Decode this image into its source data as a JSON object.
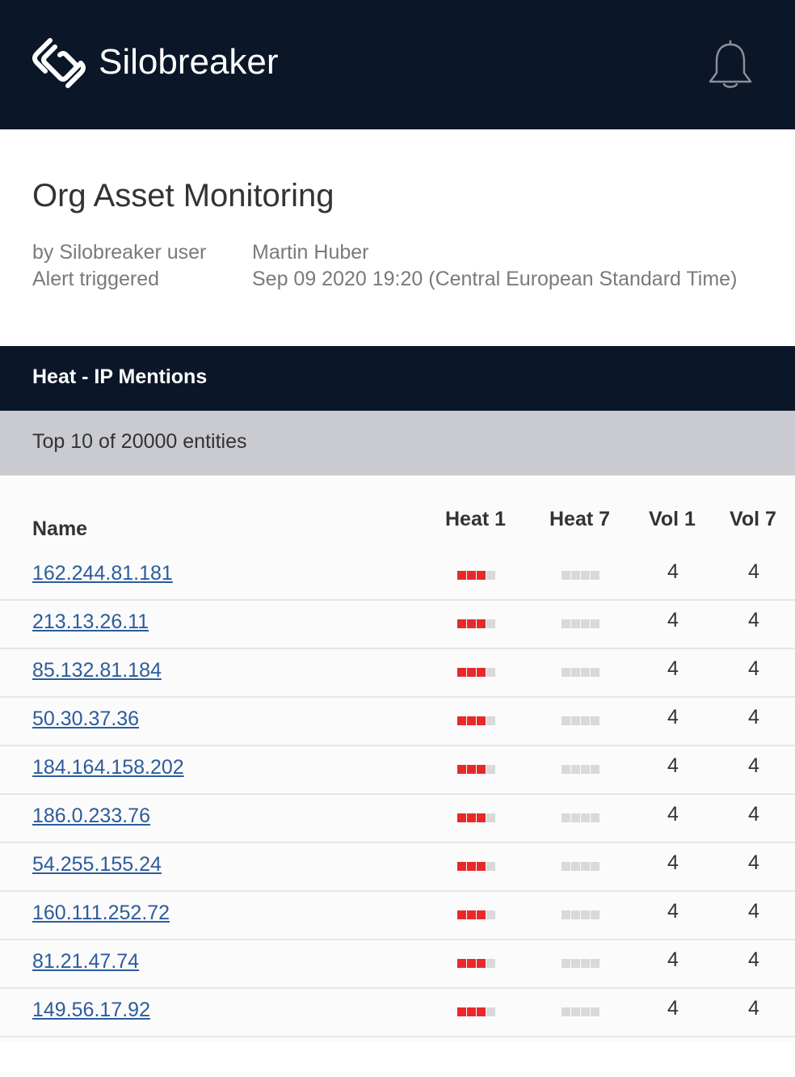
{
  "header": {
    "brand": "Silobreaker",
    "logo_icon": "silobreaker-logo-icon",
    "notification_icon": "bell-icon",
    "background": "#0b1628"
  },
  "alert": {
    "title": "Org Asset Monitoring",
    "by_label": "by Silobreaker user",
    "by_value": "Martin Huber",
    "triggered_label": "Alert triggered",
    "triggered_value": "Sep 09 2020 19:20 (Central European Standard Time)"
  },
  "section": {
    "title": "Heat - IP Mentions",
    "subtitle": "Top 10 of 20000 entities"
  },
  "table": {
    "columns": {
      "name": "Name",
      "heat1": "Heat 1",
      "heat7": "Heat 7",
      "vol1": "Vol 1",
      "vol7": "Vol 7"
    },
    "heat_colors": {
      "hot": "#e8292b",
      "empty": "#d9d9d9"
    },
    "rows": [
      {
        "name": "162.244.81.181",
        "heat1": 3,
        "heat7": 0,
        "vol1": "4",
        "vol7": "4"
      },
      {
        "name": "213.13.26.11",
        "heat1": 3,
        "heat7": 0,
        "vol1": "4",
        "vol7": "4"
      },
      {
        "name": "85.132.81.184",
        "heat1": 3,
        "heat7": 0,
        "vol1": "4",
        "vol7": "4"
      },
      {
        "name": "50.30.37.36",
        "heat1": 3,
        "heat7": 0,
        "vol1": "4",
        "vol7": "4"
      },
      {
        "name": "184.164.158.202",
        "heat1": 3,
        "heat7": 0,
        "vol1": "4",
        "vol7": "4"
      },
      {
        "name": "186.0.233.76",
        "heat1": 3,
        "heat7": 0,
        "vol1": "4",
        "vol7": "4"
      },
      {
        "name": "54.255.155.24",
        "heat1": 3,
        "heat7": 0,
        "vol1": "4",
        "vol7": "4"
      },
      {
        "name": "160.111.252.72",
        "heat1": 3,
        "heat7": 0,
        "vol1": "4",
        "vol7": "4"
      },
      {
        "name": "81.21.47.74",
        "heat1": 3,
        "heat7": 0,
        "vol1": "4",
        "vol7": "4"
      },
      {
        "name": "149.56.17.92",
        "heat1": 3,
        "heat7": 0,
        "vol1": "4",
        "vol7": "4"
      }
    ]
  }
}
